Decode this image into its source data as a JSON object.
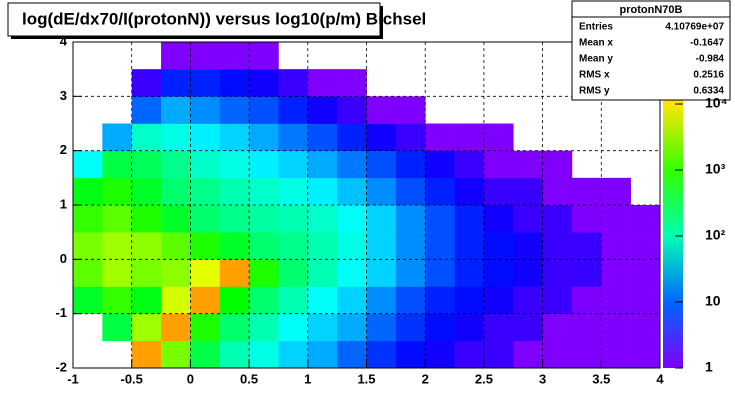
{
  "chart_data": {
    "type": "heatmap",
    "title": "log(dE/dx70/I(protonN)) versus log10(p/m) Bichsel",
    "xbins": [
      -1,
      -0.75,
      -0.5,
      -0.25,
      0,
      0.25,
      0.5,
      0.75,
      1,
      1.25,
      1.5,
      1.75,
      2,
      2.25,
      2.5,
      2.75,
      3,
      3.25,
      3.5,
      3.75,
      4
    ],
    "ybins": [
      -2,
      -1.5,
      -1,
      -0.5,
      0,
      0.5,
      1,
      1.5,
      2,
      2.5,
      3,
      3.5,
      4
    ],
    "z": [
      [
        null,
        null,
        20000,
        2000,
        300,
        100,
        60,
        30,
        20,
        10,
        6,
        4,
        3,
        2,
        2,
        1,
        1,
        1,
        1,
        1
      ],
      [
        null,
        300,
        3000,
        20000,
        800,
        200,
        100,
        50,
        30,
        20,
        10,
        6,
        4,
        3,
        2,
        2,
        1,
        1,
        1,
        1
      ],
      [
        400,
        1000,
        500,
        5000,
        20000,
        600,
        200,
        100,
        50,
        30,
        15,
        8,
        5,
        4,
        3,
        2,
        2,
        1,
        1,
        1
      ],
      [
        1500,
        3000,
        2000,
        2500,
        6000,
        20000,
        800,
        200,
        100,
        50,
        30,
        15,
        8,
        5,
        4,
        3,
        2,
        2,
        1,
        1
      ],
      [
        2000,
        3000,
        2500,
        1500,
        800,
        400,
        200,
        150,
        100,
        60,
        30,
        15,
        8,
        5,
        4,
        3,
        2,
        2,
        1,
        1
      ],
      [
        1000,
        1500,
        800,
        400,
        200,
        150,
        120,
        100,
        80,
        50,
        30,
        15,
        8,
        5,
        3,
        2,
        2,
        1,
        1,
        1
      ],
      [
        500,
        800,
        400,
        200,
        150,
        100,
        80,
        60,
        40,
        25,
        15,
        8,
        5,
        3,
        2,
        2,
        1,
        1,
        1,
        null
      ],
      [
        50,
        300,
        250,
        150,
        80,
        60,
        40,
        30,
        20,
        12,
        8,
        5,
        3,
        2,
        1,
        1,
        1,
        null,
        null,
        null
      ],
      [
        null,
        20,
        80,
        60,
        40,
        30,
        20,
        12,
        8,
        5,
        3,
        2,
        1,
        1,
        1,
        null,
        null,
        null,
        null,
        null
      ],
      [
        null,
        null,
        10,
        20,
        15,
        10,
        8,
        5,
        3,
        2,
        1,
        1,
        null,
        null,
        null,
        null,
        null,
        null,
        null,
        null
      ],
      [
        null,
        null,
        2,
        5,
        5,
        4,
        3,
        2,
        1,
        1,
        null,
        null,
        null,
        null,
        null,
        null,
        null,
        null,
        null,
        null
      ],
      [
        null,
        null,
        null,
        1,
        1,
        1,
        1,
        null,
        null,
        null,
        null,
        null,
        null,
        null,
        null,
        null,
        null,
        null,
        null,
        null
      ]
    ],
    "xlim": [
      -1,
      4
    ],
    "ylim": [
      -2,
      4
    ],
    "xticks": [
      -1,
      -0.5,
      0,
      0.5,
      1,
      1.5,
      2,
      2.5,
      3,
      3.5,
      4
    ],
    "yticks": [
      -2,
      -1,
      0,
      1,
      2,
      3,
      4
    ],
    "zlim": [
      1,
      100000
    ],
    "zlog": true,
    "zticks": [
      1,
      10,
      {
        "value": 100,
        "label": "10²"
      },
      {
        "value": 1000,
        "label": "10³"
      },
      {
        "value": 10000,
        "label": "10⁴"
      }
    ],
    "grid": true,
    "stats": {
      "name": "protonN70B",
      "rows": [
        {
          "label": "Entries",
          "value": "4.10769e+07"
        },
        {
          "label": "Mean x",
          "value": "-0.1647"
        },
        {
          "label": "Mean y",
          "value": "-0.984"
        },
        {
          "label": "RMS x",
          "value": "0.2516"
        },
        {
          "label": "RMS y",
          "value": "0.6334"
        }
      ]
    }
  }
}
